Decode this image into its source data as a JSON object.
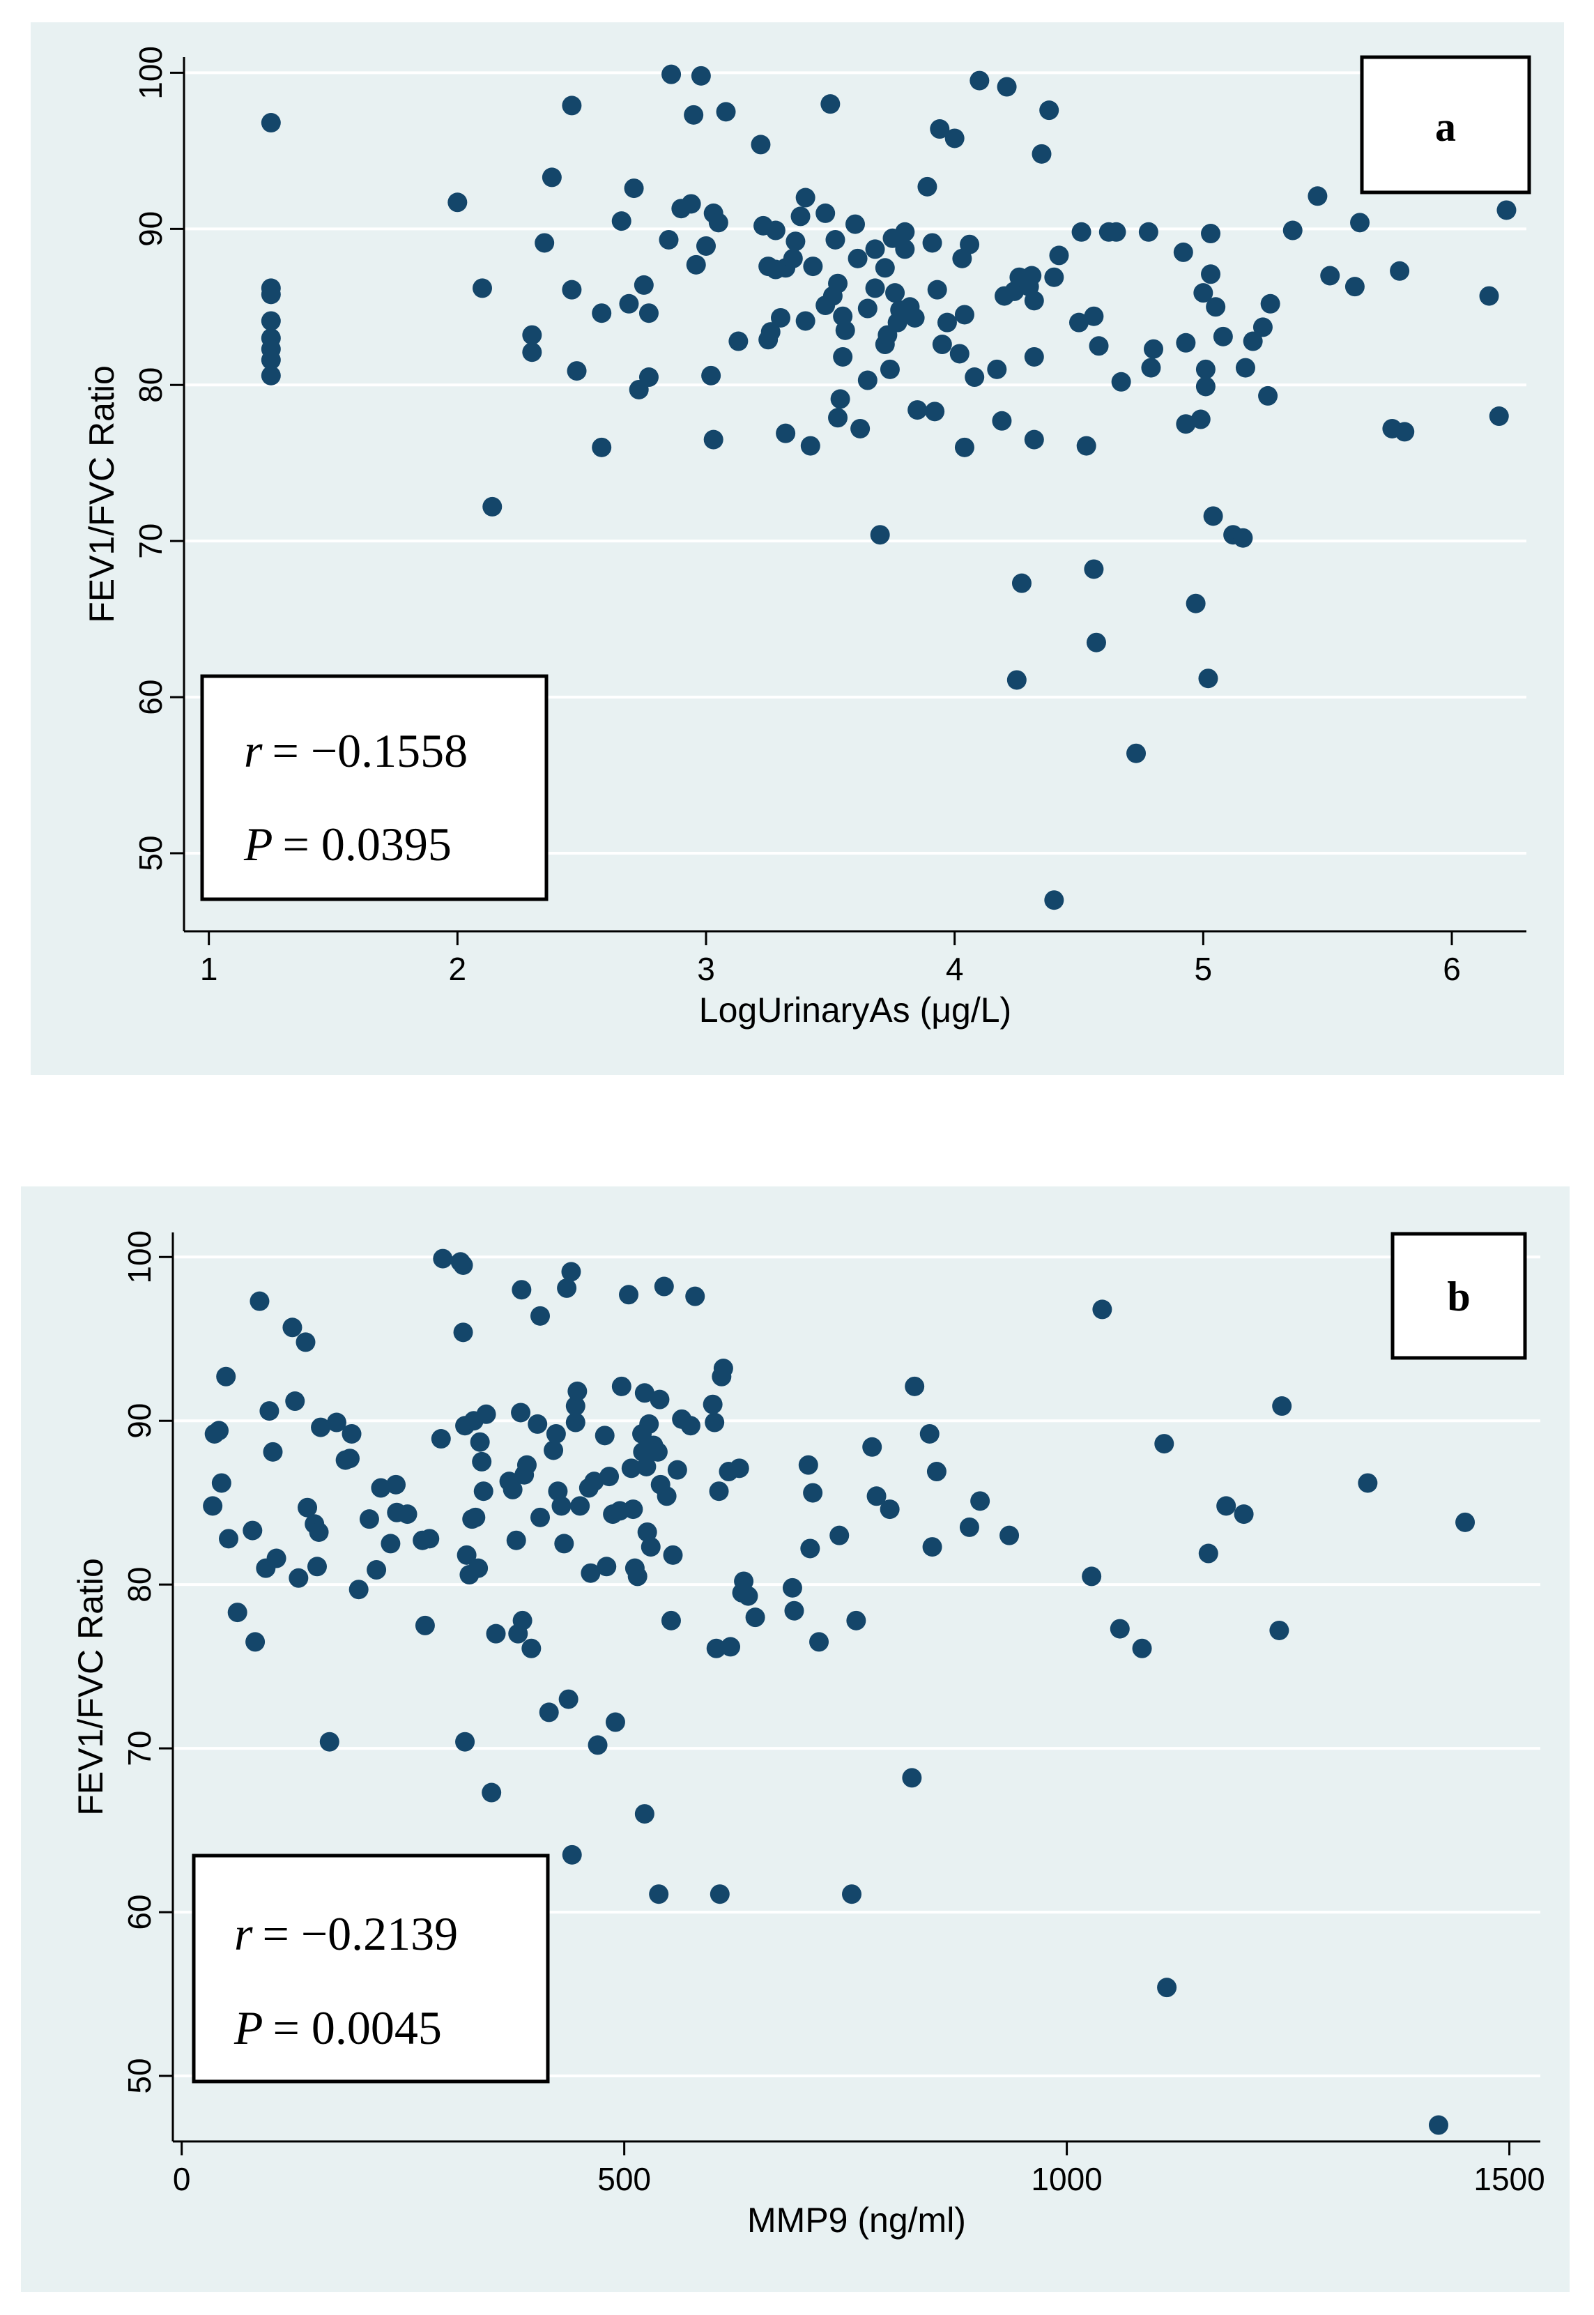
{
  "chart_data": [
    {
      "type": "scatter",
      "panel_label": "a",
      "title": "",
      "xlabel": "LogUrinaryAs (μg/L)",
      "ylabel": "FEV1/FVC Ratio",
      "xlim": [
        0.9,
        6.3
      ],
      "ylim": [
        45,
        101
      ],
      "xticks": [
        1,
        2,
        3,
        4,
        5,
        6
      ],
      "yticks": [
        50,
        60,
        70,
        80,
        90,
        100
      ],
      "grid": true,
      "stats": {
        "r_label": "r",
        "r_value": "= −0.1558",
        "p_label": "P",
        "p_value": "= 0.0395"
      },
      "points": [
        [
          1.25,
          96.8
        ],
        [
          1.25,
          86.2
        ],
        [
          1.25,
          85.8
        ],
        [
          1.25,
          84.1
        ],
        [
          1.25,
          83.0
        ],
        [
          1.25,
          82.3
        ],
        [
          1.25,
          81.6
        ],
        [
          1.25,
          80.6
        ],
        [
          2.0,
          91.7
        ],
        [
          2.1,
          86.2
        ],
        [
          2.14,
          72.2
        ],
        [
          2.3,
          83.2
        ],
        [
          2.3,
          82.1
        ],
        [
          2.35,
          89.1
        ],
        [
          2.38,
          93.3
        ],
        [
          2.46,
          97.9
        ],
        [
          2.46,
          86.1
        ],
        [
          2.48,
          80.9
        ],
        [
          2.58,
          84.6
        ],
        [
          2.58,
          76.0
        ],
        [
          2.66,
          90.5
        ],
        [
          2.69,
          85.2
        ],
        [
          2.71,
          92.6
        ],
        [
          2.73,
          79.7
        ],
        [
          2.75,
          86.4
        ],
        [
          2.77,
          84.6
        ],
        [
          2.77,
          80.5
        ],
        [
          2.85,
          89.3
        ],
        [
          2.86,
          99.9
        ],
        [
          2.9,
          91.3
        ],
        [
          2.94,
          91.6
        ],
        [
          2.95,
          97.3
        ],
        [
          2.96,
          87.7
        ],
        [
          2.98,
          99.8
        ],
        [
          3.0,
          88.9
        ],
        [
          3.02,
          80.6
        ],
        [
          3.03,
          91.0
        ],
        [
          3.03,
          76.5
        ],
        [
          3.05,
          90.4
        ],
        [
          3.08,
          97.5
        ],
        [
          3.13,
          82.8
        ],
        [
          3.22,
          95.4
        ],
        [
          3.23,
          90.2
        ],
        [
          3.25,
          87.6
        ],
        [
          3.25,
          82.9
        ],
        [
          3.26,
          83.4
        ],
        [
          3.28,
          89.9
        ],
        [
          3.28,
          87.4
        ],
        [
          3.3,
          84.3
        ],
        [
          3.32,
          87.5
        ],
        [
          3.32,
          76.9
        ],
        [
          3.35,
          88.1
        ],
        [
          3.36,
          89.2
        ],
        [
          3.38,
          90.8
        ],
        [
          3.4,
          92.0
        ],
        [
          3.4,
          84.1
        ],
        [
          3.42,
          76.1
        ],
        [
          3.43,
          87.6
        ],
        [
          3.48,
          85.1
        ],
        [
          3.48,
          91.0
        ],
        [
          3.5,
          98.0
        ],
        [
          3.51,
          85.7
        ],
        [
          3.52,
          89.3
        ],
        [
          3.53,
          86.5
        ],
        [
          3.53,
          77.9
        ],
        [
          3.54,
          79.1
        ],
        [
          3.55,
          84.4
        ],
        [
          3.55,
          81.8
        ],
        [
          3.56,
          83.5
        ],
        [
          3.6,
          90.3
        ],
        [
          3.61,
          88.1
        ],
        [
          3.62,
          77.2
        ],
        [
          3.65,
          84.9
        ],
        [
          3.65,
          80.3
        ],
        [
          3.68,
          86.2
        ],
        [
          3.68,
          88.7
        ],
        [
          3.7,
          70.4
        ],
        [
          3.72,
          82.6
        ],
        [
          3.72,
          87.5
        ],
        [
          3.73,
          83.2
        ],
        [
          3.74,
          81.0
        ],
        [
          3.75,
          89.4
        ],
        [
          3.76,
          85.9
        ],
        [
          3.77,
          84.0
        ],
        [
          3.78,
          84.8
        ],
        [
          3.8,
          89.8
        ],
        [
          3.8,
          88.7
        ],
        [
          3.82,
          85.0
        ],
        [
          3.84,
          84.3
        ],
        [
          3.85,
          78.4
        ],
        [
          3.89,
          92.7
        ],
        [
          3.91,
          89.1
        ],
        [
          3.92,
          78.3
        ],
        [
          3.93,
          86.1
        ],
        [
          3.94,
          96.4
        ],
        [
          3.95,
          82.6
        ],
        [
          3.97,
          84.0
        ],
        [
          4.0,
          95.8
        ],
        [
          4.02,
          82.0
        ],
        [
          4.03,
          88.1
        ],
        [
          4.04,
          84.5
        ],
        [
          4.04,
          76.0
        ],
        [
          4.06,
          89.0
        ],
        [
          4.08,
          80.5
        ],
        [
          4.1,
          99.5
        ],
        [
          4.17,
          81.0
        ],
        [
          4.19,
          77.7
        ],
        [
          4.2,
          85.7
        ],
        [
          4.21,
          99.1
        ],
        [
          4.24,
          86.0
        ],
        [
          4.25,
          61.1
        ],
        [
          4.26,
          86.9
        ],
        [
          4.27,
          67.3
        ],
        [
          4.3,
          86.3
        ],
        [
          4.31,
          87.0
        ],
        [
          4.32,
          81.8
        ],
        [
          4.32,
          85.4
        ],
        [
          4.32,
          76.5
        ],
        [
          4.35,
          94.8
        ],
        [
          4.38,
          97.6
        ],
        [
          4.4,
          47.0
        ],
        [
          4.4,
          86.9
        ],
        [
          4.42,
          88.3
        ],
        [
          4.5,
          84.0
        ],
        [
          4.51,
          89.8
        ],
        [
          4.53,
          76.1
        ],
        [
          4.56,
          84.4
        ],
        [
          4.56,
          68.2
        ],
        [
          4.57,
          63.5
        ],
        [
          4.58,
          82.5
        ],
        [
          4.62,
          89.8
        ],
        [
          4.65,
          89.8
        ],
        [
          4.67,
          80.2
        ],
        [
          4.73,
          56.4
        ],
        [
          4.78,
          89.8
        ],
        [
          4.79,
          81.1
        ],
        [
          4.8,
          82.3
        ],
        [
          4.92,
          88.5
        ],
        [
          4.93,
          82.7
        ],
        [
          4.93,
          77.5
        ],
        [
          4.97,
          66.0
        ],
        [
          4.99,
          77.8
        ],
        [
          5.0,
          85.9
        ],
        [
          5.01,
          81.0
        ],
        [
          5.01,
          79.9
        ],
        [
          5.02,
          61.2
        ],
        [
          5.03,
          89.7
        ],
        [
          5.03,
          87.1
        ],
        [
          5.04,
          71.6
        ],
        [
          5.05,
          85.0
        ],
        [
          5.08,
          83.1
        ],
        [
          5.12,
          70.4
        ],
        [
          5.16,
          70.2
        ],
        [
          5.17,
          81.1
        ],
        [
          5.2,
          82.8
        ],
        [
          5.24,
          83.7
        ],
        [
          5.26,
          79.3
        ],
        [
          5.27,
          85.2
        ],
        [
          5.36,
          89.9
        ],
        [
          5.46,
          92.1
        ],
        [
          5.51,
          87.0
        ],
        [
          5.61,
          86.3
        ],
        [
          5.63,
          90.4
        ],
        [
          5.76,
          77.2
        ],
        [
          5.79,
          87.3
        ],
        [
          5.81,
          77.0
        ],
        [
          6.15,
          85.7
        ],
        [
          6.19,
          78.0
        ],
        [
          6.22,
          91.2
        ]
      ]
    },
    {
      "type": "scatter",
      "panel_label": "b",
      "title": "",
      "xlabel": "MMP9 (ng/ml)",
      "ylabel": "FEV1/FVC Ratio",
      "xlim": [
        -10,
        1535
      ],
      "ylim": [
        46,
        101.5
      ],
      "xticks": [
        0,
        500,
        1000,
        1500
      ],
      "yticks": [
        50,
        60,
        70,
        80,
        90,
        100
      ],
      "grid": true,
      "stats": {
        "r_label": "r",
        "r_value": "= −0.2139",
        "p_label": "P",
        "p_value": "= 0.0045"
      },
      "points": [
        [
          35,
          84.8
        ],
        [
          37,
          89.2
        ],
        [
          42,
          89.4
        ],
        [
          45,
          86.2
        ],
        [
          50,
          92.7
        ],
        [
          53,
          82.8
        ],
        [
          63,
          78.3
        ],
        [
          80,
          83.3
        ],
        [
          83,
          76.5
        ],
        [
          88,
          97.3
        ],
        [
          95,
          81.0
        ],
        [
          99,
          90.6
        ],
        [
          103,
          88.1
        ],
        [
          107,
          81.6
        ],
        [
          125,
          95.7
        ],
        [
          128,
          91.2
        ],
        [
          132,
          80.4
        ],
        [
          140,
          94.8
        ],
        [
          142,
          84.7
        ],
        [
          150,
          83.7
        ],
        [
          153,
          81.1
        ],
        [
          155,
          83.2
        ],
        [
          157,
          89.6
        ],
        [
          167,
          70.4
        ],
        [
          175,
          89.9
        ],
        [
          185,
          87.6
        ],
        [
          190,
          87.7
        ],
        [
          192,
          89.2
        ],
        [
          200,
          79.7
        ],
        [
          212,
          84.0
        ],
        [
          220,
          80.9
        ],
        [
          225,
          85.9
        ],
        [
          236,
          82.5
        ],
        [
          242,
          86.1
        ],
        [
          243,
          84.4
        ],
        [
          255,
          84.3
        ],
        [
          272,
          82.7
        ],
        [
          275,
          77.5
        ],
        [
          280,
          82.8
        ],
        [
          293,
          88.9
        ],
        [
          295,
          99.9
        ],
        [
          315,
          99.7
        ],
        [
          318,
          99.5
        ],
        [
          318,
          95.4
        ],
        [
          320,
          70.4
        ],
        [
          320,
          89.7
        ],
        [
          322,
          81.8
        ],
        [
          325,
          80.6
        ],
        [
          328,
          84.0
        ],
        [
          330,
          90.0
        ],
        [
          332,
          84.1
        ],
        [
          335,
          81.0
        ],
        [
          337,
          88.7
        ],
        [
          339,
          87.5
        ],
        [
          341,
          85.7
        ],
        [
          344,
          90.4
        ],
        [
          350,
          67.3
        ],
        [
          355,
          77.0
        ],
        [
          370,
          86.3
        ],
        [
          374,
          85.8
        ],
        [
          378,
          82.7
        ],
        [
          380,
          77.0
        ],
        [
          383,
          90.5
        ],
        [
          384,
          98.0
        ],
        [
          385,
          77.8
        ],
        [
          387,
          86.7
        ],
        [
          390,
          87.3
        ],
        [
          395,
          76.1
        ],
        [
          402,
          89.8
        ],
        [
          405,
          96.4
        ],
        [
          405,
          84.1
        ],
        [
          415,
          72.2
        ],
        [
          420,
          88.2
        ],
        [
          423,
          89.2
        ],
        [
          425,
          85.7
        ],
        [
          429,
          84.8
        ],
        [
          432,
          82.5
        ],
        [
          435,
          98.1
        ],
        [
          437,
          73.0
        ],
        [
          440,
          99.1
        ],
        [
          441,
          63.5
        ],
        [
          445,
          90.9
        ],
        [
          445,
          89.9
        ],
        [
          447,
          91.8
        ],
        [
          450,
          84.8
        ],
        [
          460,
          85.9
        ],
        [
          462,
          80.7
        ],
        [
          466,
          86.3
        ],
        [
          470,
          70.2
        ],
        [
          478,
          89.1
        ],
        [
          480,
          81.1
        ],
        [
          483,
          86.6
        ],
        [
          487,
          84.3
        ],
        [
          490,
          71.6
        ],
        [
          495,
          84.5
        ],
        [
          497,
          92.1
        ],
        [
          505,
          97.7
        ],
        [
          508,
          87.1
        ],
        [
          510,
          84.6
        ],
        [
          512,
          81.0
        ],
        [
          515,
          80.5
        ],
        [
          520,
          89.2
        ],
        [
          521,
          88.1
        ],
        [
          523,
          91.7
        ],
        [
          523,
          66.0
        ],
        [
          525,
          87.2
        ],
        [
          526,
          83.2
        ],
        [
          528,
          89.8
        ],
        [
          530,
          82.3
        ],
        [
          533,
          88.5
        ],
        [
          538,
          88.1
        ],
        [
          539,
          61.1
        ],
        [
          540,
          91.3
        ],
        [
          541,
          86.1
        ],
        [
          545,
          98.2
        ],
        [
          548,
          85.4
        ],
        [
          553,
          77.8
        ],
        [
          555,
          81.8
        ],
        [
          560,
          87.0
        ],
        [
          565,
          90.1
        ],
        [
          575,
          89.7
        ],
        [
          580,
          97.6
        ],
        [
          600,
          91.0
        ],
        [
          602,
          89.9
        ],
        [
          604,
          76.1
        ],
        [
          607,
          85.7
        ],
        [
          608,
          61.1
        ],
        [
          610,
          92.7
        ],
        [
          612,
          93.2
        ],
        [
          618,
          86.9
        ],
        [
          620,
          76.2
        ],
        [
          630,
          87.1
        ],
        [
          633,
          79.5
        ],
        [
          635,
          80.2
        ],
        [
          640,
          79.3
        ],
        [
          648,
          78.0
        ],
        [
          690,
          79.8
        ],
        [
          692,
          78.4
        ],
        [
          708,
          87.3
        ],
        [
          710,
          82.2
        ],
        [
          713,
          85.6
        ],
        [
          720,
          76.5
        ],
        [
          743,
          83.0
        ],
        [
          757,
          61.1
        ],
        [
          762,
          77.8
        ],
        [
          780,
          88.4
        ],
        [
          785,
          85.4
        ],
        [
          800,
          84.6
        ],
        [
          825,
          68.2
        ],
        [
          828,
          92.1
        ],
        [
          845,
          89.2
        ],
        [
          848,
          82.3
        ],
        [
          853,
          86.9
        ],
        [
          890,
          83.5
        ],
        [
          902,
          85.1
        ],
        [
          935,
          83.0
        ],
        [
          1028,
          80.5
        ],
        [
          1040,
          96.8
        ],
        [
          1060,
          77.3
        ],
        [
          1085,
          76.1
        ],
        [
          1110,
          88.6
        ],
        [
          1113,
          55.4
        ],
        [
          1160,
          81.9
        ],
        [
          1180,
          84.8
        ],
        [
          1200,
          84.3
        ],
        [
          1240,
          77.2
        ],
        [
          1243,
          90.9
        ],
        [
          1340,
          86.2
        ],
        [
          1420,
          47.0
        ],
        [
          1450,
          83.8
        ]
      ]
    }
  ]
}
